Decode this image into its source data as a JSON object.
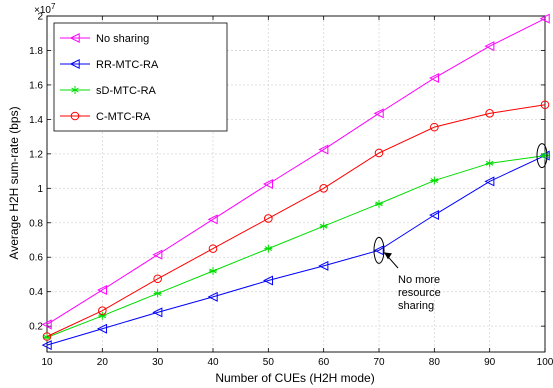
{
  "chart_data": {
    "type": "line",
    "title": "",
    "xlabel": "Number of CUEs (H2H mode)",
    "ylabel": "Average H2H sum-rate (bps)",
    "y_multiplier": "×10",
    "y_multiplier_exp": "7",
    "xlim": [
      10,
      100
    ],
    "ylim": [
      0.05,
      2
    ],
    "xticks": [
      10,
      20,
      30,
      40,
      50,
      60,
      70,
      80,
      90,
      100
    ],
    "yticks": [
      0.2,
      0.4,
      0.6,
      0.8,
      1,
      1.2,
      1.4,
      1.6,
      1.8,
      2
    ],
    "ytick_labels": [
      "0.2",
      "0.4",
      "0.6",
      "0.8",
      "1",
      "1.2",
      "1.4",
      "1.6",
      "1.8",
      "2"
    ],
    "grid": true,
    "legend_position": "top-left",
    "x": [
      10,
      20,
      30,
      40,
      50,
      60,
      70,
      80,
      90,
      100
    ],
    "series": [
      {
        "name": "No sharing",
        "color": "#ff00ff",
        "marker": "triangle-left",
        "values": [
          0.21,
          0.41,
          0.615,
          0.82,
          1.025,
          1.225,
          1.435,
          1.64,
          1.825,
          1.985
        ]
      },
      {
        "name": "RR-MTC-RA",
        "color": "#0000ff",
        "marker": "triangle-left",
        "values": [
          0.09,
          0.185,
          0.28,
          0.37,
          0.465,
          0.55,
          0.64,
          0.845,
          1.04,
          1.19
        ]
      },
      {
        "name": "sD-MTC-RA",
        "color": "#00dd00",
        "marker": "asterisk",
        "values": [
          0.135,
          0.26,
          0.39,
          0.52,
          0.65,
          0.78,
          0.91,
          1.045,
          1.145,
          1.19
        ]
      },
      {
        "name": "C-MTC-RA",
        "color": "#ff0000",
        "marker": "circle",
        "values": [
          0.14,
          0.29,
          0.475,
          0.65,
          0.825,
          1.0,
          1.205,
          1.355,
          1.435,
          1.485
        ]
      }
    ],
    "annotations": [
      {
        "text_lines": [
          "No more",
          "resource",
          "sharing"
        ],
        "x": 70,
        "y": 0.64
      },
      {
        "text_lines": [],
        "x": 100,
        "y": 1.19
      }
    ]
  }
}
